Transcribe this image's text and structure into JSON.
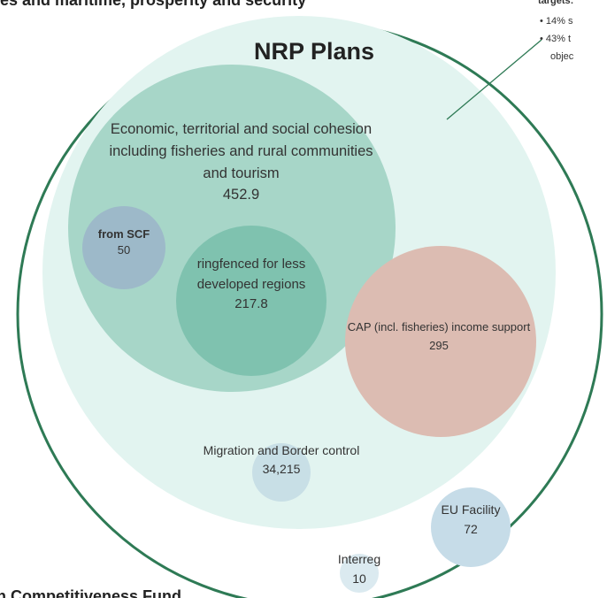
{
  "header": {
    "title": "es and maritime, prosperity and security"
  },
  "side_note": {
    "heading": "targets:",
    "items": [
      "14% s",
      "43% t"
    ],
    "continuation": "objec"
  },
  "outer_circle": {
    "label": "NRP Plans"
  },
  "nodes": [
    {
      "label": "Economic, territorial and social cohesion including fisheries and rural communities and tourism",
      "value": "452.9"
    },
    {
      "label": "from SCF",
      "value": "50"
    },
    {
      "label": "ringfenced for less developed regions",
      "value": "217.8"
    },
    {
      "label": "CAP (incl. fisheries) income support",
      "value": "295"
    },
    {
      "label": "Migration and Border control",
      "value": "34,215"
    },
    {
      "label": "EU Facility",
      "value": "72"
    },
    {
      "label": "Interreg",
      "value": "10"
    }
  ],
  "footer": {
    "title": "n Competitiveness Fund"
  }
}
